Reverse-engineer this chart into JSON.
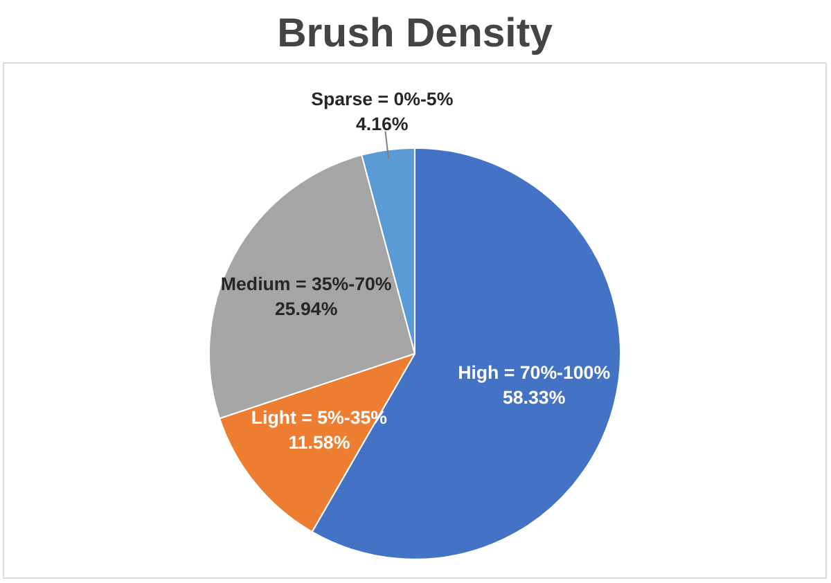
{
  "chart_data": {
    "type": "pie",
    "title": "Brush Density",
    "categories": [
      "High = 70%-100%",
      "Light = 5%-35%",
      "Medium = 35%-70%",
      "Sparse = 0%-5%"
    ],
    "values": [
      58.33,
      11.58,
      25.94,
      4.16
    ],
    "colors": [
      "#4472c4",
      "#ed7d31",
      "#a5a5a5",
      "#5b9bd5"
    ],
    "value_labels": [
      "58.33%",
      "11.58%",
      "25.94%",
      "4.16%"
    ],
    "legend": false
  }
}
